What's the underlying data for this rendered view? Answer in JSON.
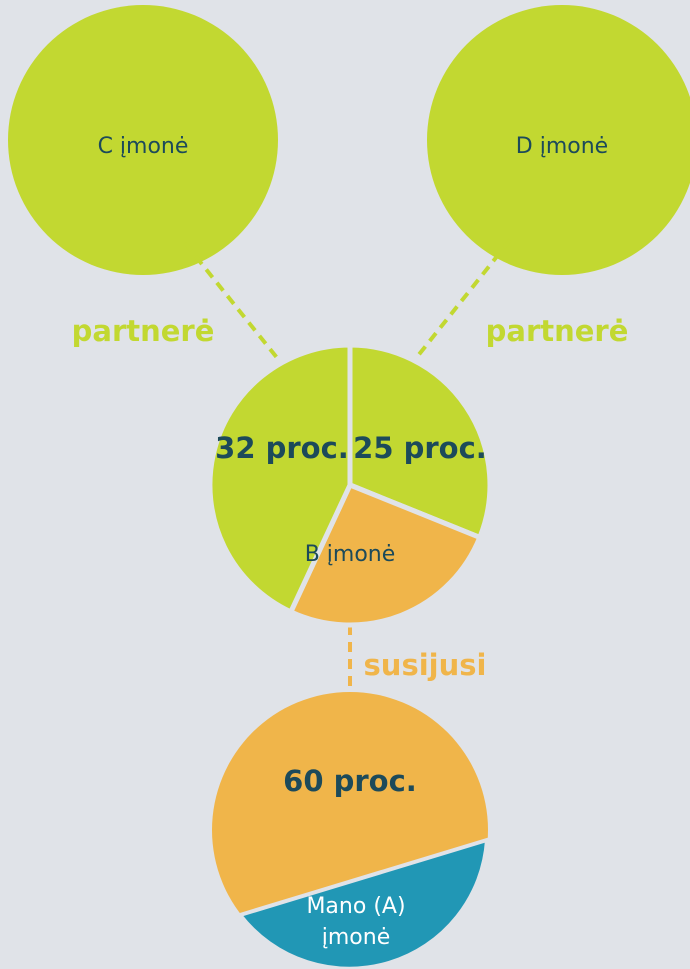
{
  "nodes": {
    "c": "C įmonė",
    "d": "D įmonė",
    "b": "B įmonė",
    "a": [
      "Mano (A)",
      "įmonė"
    ]
  },
  "relations": {
    "c_b": "partnerė",
    "d_b": "partnerė",
    "b_a": "susijusi"
  },
  "shares": {
    "c_in_b": "32 proc.",
    "d_in_b": "25 proc.",
    "b_in_a": "60 proc."
  }
}
